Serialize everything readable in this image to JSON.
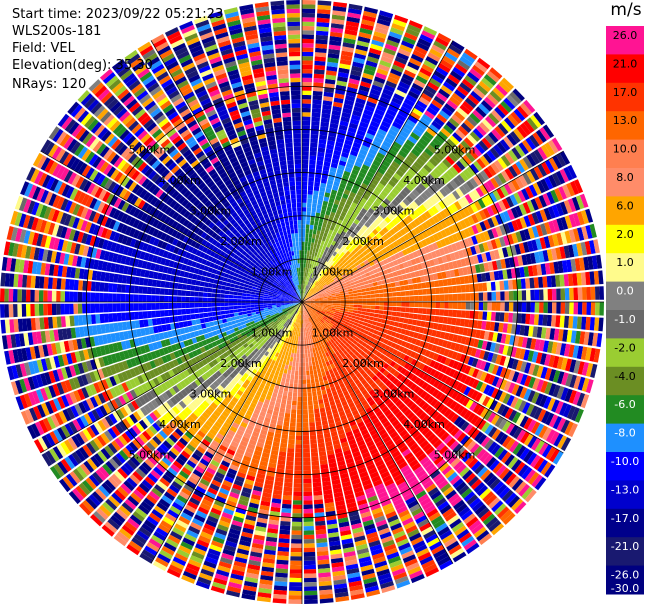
{
  "header": {
    "start_time": "Start time: 2023/09/22 05:21:23",
    "instrument": "WLS200s-181",
    "field": "Field: VEL",
    "elevation": "Elevation(deg): 35.30",
    "nrays": "NRays: 120"
  },
  "chart_data": {
    "type": "ppi",
    "nrays": 120,
    "elevation_deg": 35.3,
    "field": "VEL",
    "range_ring_labels": [
      "1.00km",
      "2.00km",
      "3.00km",
      "4.00km",
      "5.00km"
    ],
    "range_rings_km": [
      1,
      2,
      3,
      4,
      5
    ],
    "max_range_km": 7.0,
    "direction_of_max_positive_velocity_deg": 95,
    "approx_max_velocity_ms": 17,
    "colorbar": {
      "unit": "m/s",
      "tick_labels": [
        "26.0",
        "21.0",
        "17.0",
        "13.0",
        "10.0",
        "8.0",
        "6.0",
        "2.0",
        "1.0",
        "0.0",
        "-1.0",
        "-2.0",
        "-4.0",
        "-6.0",
        "-8.0",
        "-10.0",
        "-13.0",
        "-17.0",
        "-21.0",
        "-26.0",
        "-30.0"
      ],
      "colors": [
        "#ff1493",
        "#ff0000",
        "#ff3300",
        "#ff6600",
        "#ff7f50",
        "#ff8c69",
        "#ffa500",
        "#ffff00",
        "#fffb8c",
        "#808080",
        "#696969",
        "#9acd32",
        "#6b8e23",
        "#228b22",
        "#1e90ff",
        "#0000ff",
        "#0000cd",
        "#00008b",
        "#191970",
        "#000080"
      ]
    }
  }
}
